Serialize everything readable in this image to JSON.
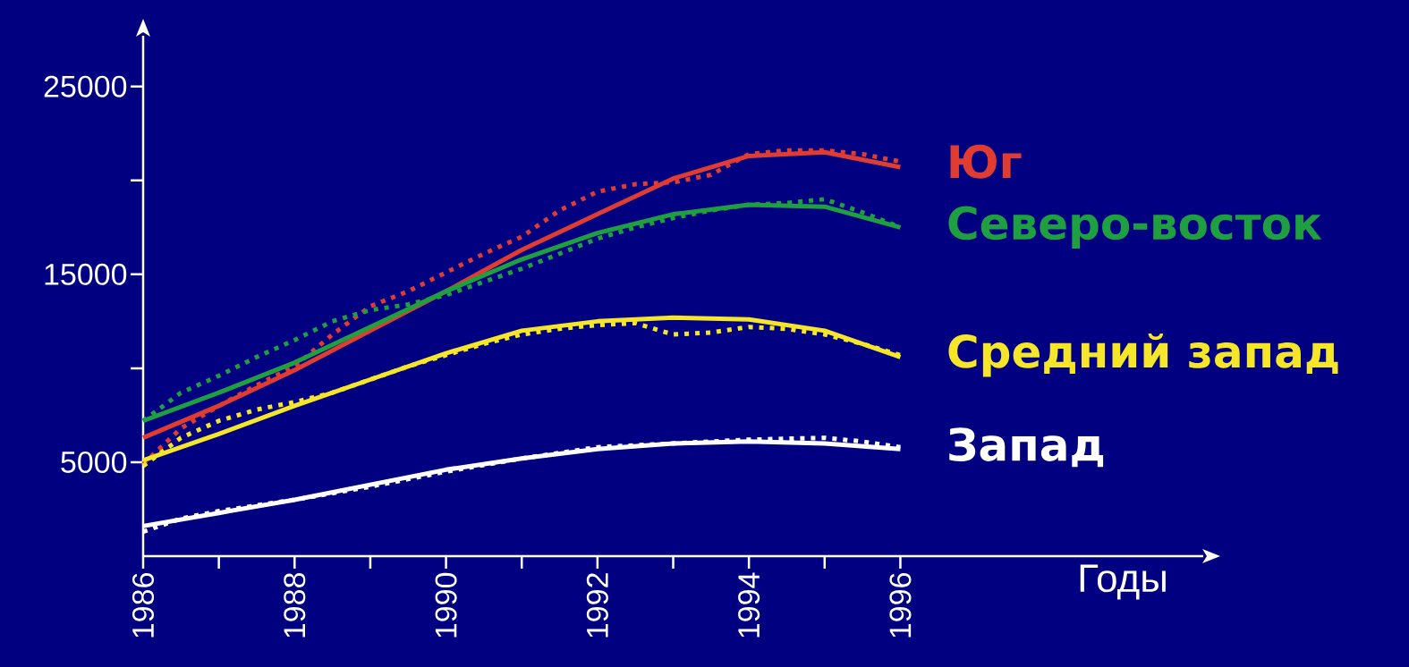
{
  "chart_data": {
    "type": "line",
    "xlabel": "Годы",
    "xlim": [
      1986,
      2000
    ],
    "ylim": [
      0,
      27700
    ],
    "xticks": [
      1986,
      {
        "value": 1987,
        "label": null
      },
      1988,
      {
        "value": 1989,
        "label": null
      },
      1990,
      {
        "value": 1991,
        "label": null
      },
      1992,
      {
        "value": 1993,
        "label": null
      },
      1994,
      {
        "value": 1995,
        "label": null
      },
      1996
    ],
    "yticks": [
      5000,
      {
        "value": 10000,
        "label": null
      },
      15000,
      {
        "value": 20000,
        "label": null
      },
      25000
    ],
    "series": [
      {
        "name": "Юг",
        "color": "#e03c31",
        "line_style": "dotted",
        "x": [
          1986,
          1986.5,
          1987,
          1987.5,
          1988,
          1988.5,
          1989,
          1989.5,
          1990,
          1990.5,
          1991,
          1991.5,
          1992,
          1992.5,
          1993,
          1993.5,
          1994,
          1994.5,
          1995,
          1995.5,
          1996
        ],
        "values": [
          4900,
          6800,
          8000,
          9100,
          10100,
          11800,
          13300,
          14100,
          15100,
          16100,
          17000,
          18400,
          19400,
          19800,
          19900,
          20300,
          21400,
          21600,
          21600,
          21400,
          21000
        ]
      },
      {
        "color": "#e03c31",
        "line_style": "solid",
        "x": [
          1986,
          1987,
          1988,
          1989,
          1990,
          1991,
          1992,
          1993,
          1994,
          1995,
          1996
        ],
        "values": [
          6300,
          8000,
          9900,
          12000,
          14100,
          16300,
          18200,
          20100,
          21300,
          21500,
          20700
        ]
      },
      {
        "name": "Северо-восток",
        "color": "#1fa040",
        "line_style": "dotted",
        "x": [
          1986,
          1986.5,
          1987,
          1987.5,
          1988,
          1988.5,
          1989,
          1989.5,
          1990,
          1990.5,
          1991,
          1991.5,
          1992,
          1992.5,
          1993,
          1993.5,
          1994,
          1994.5,
          1995,
          1995.5,
          1996
        ],
        "values": [
          7200,
          8700,
          9600,
          10600,
          11500,
          12500,
          13100,
          13400,
          13900,
          14600,
          15300,
          16100,
          16900,
          17500,
          18000,
          18400,
          18700,
          18800,
          19000,
          18300,
          17500
        ]
      },
      {
        "color": "#1fa040",
        "line_style": "solid",
        "x": [
          1986,
          1987,
          1988,
          1989,
          1990,
          1991,
          1992,
          1993,
          1994,
          1995,
          1996
        ],
        "values": [
          7200,
          8700,
          10300,
          12200,
          14100,
          15800,
          17200,
          18200,
          18700,
          18600,
          17500
        ]
      },
      {
        "name": "Средний запад",
        "color": "#f5e62a",
        "line_style": "dotted",
        "x": [
          1986,
          1986.5,
          1987,
          1987.5,
          1988,
          1988.5,
          1989,
          1989.5,
          1990,
          1990.5,
          1991,
          1991.5,
          1992,
          1992.5,
          1993,
          1993.5,
          1994,
          1994.5,
          1995,
          1995.5,
          1996
        ],
        "values": [
          4800,
          6300,
          7200,
          7800,
          8200,
          8700,
          9400,
          10100,
          10700,
          11300,
          11800,
          12100,
          12300,
          12400,
          11800,
          11900,
          12200,
          12100,
          11800,
          11300,
          10700
        ]
      },
      {
        "color": "#f5e62a",
        "line_style": "solid",
        "x": [
          1986,
          1987,
          1988,
          1989,
          1990,
          1991,
          1992,
          1993,
          1994,
          1995,
          1996
        ],
        "values": [
          5100,
          6500,
          8000,
          9400,
          10800,
          12000,
          12500,
          12700,
          12600,
          12000,
          10600
        ]
      },
      {
        "name": "Запад",
        "color": "#ffffff",
        "line_style": "dotted",
        "x": [
          1986,
          1986.5,
          1987,
          1988,
          1989,
          1990,
          1991,
          1992,
          1993,
          1994,
          1995,
          1995.5,
          1996
        ],
        "values": [
          1300,
          2000,
          2400,
          3000,
          3700,
          4500,
          5200,
          5800,
          6000,
          6200,
          6300,
          6100,
          5800
        ]
      },
      {
        "color": "#ffffff",
        "line_style": "solid",
        "x": [
          1986,
          1987,
          1988,
          1989,
          1990,
          1991,
          1992,
          1993,
          1994,
          1995,
          1996
        ],
        "values": [
          1600,
          2300,
          3000,
          3800,
          4600,
          5200,
          5700,
          6000,
          6100,
          6000,
          5700
        ]
      }
    ]
  }
}
